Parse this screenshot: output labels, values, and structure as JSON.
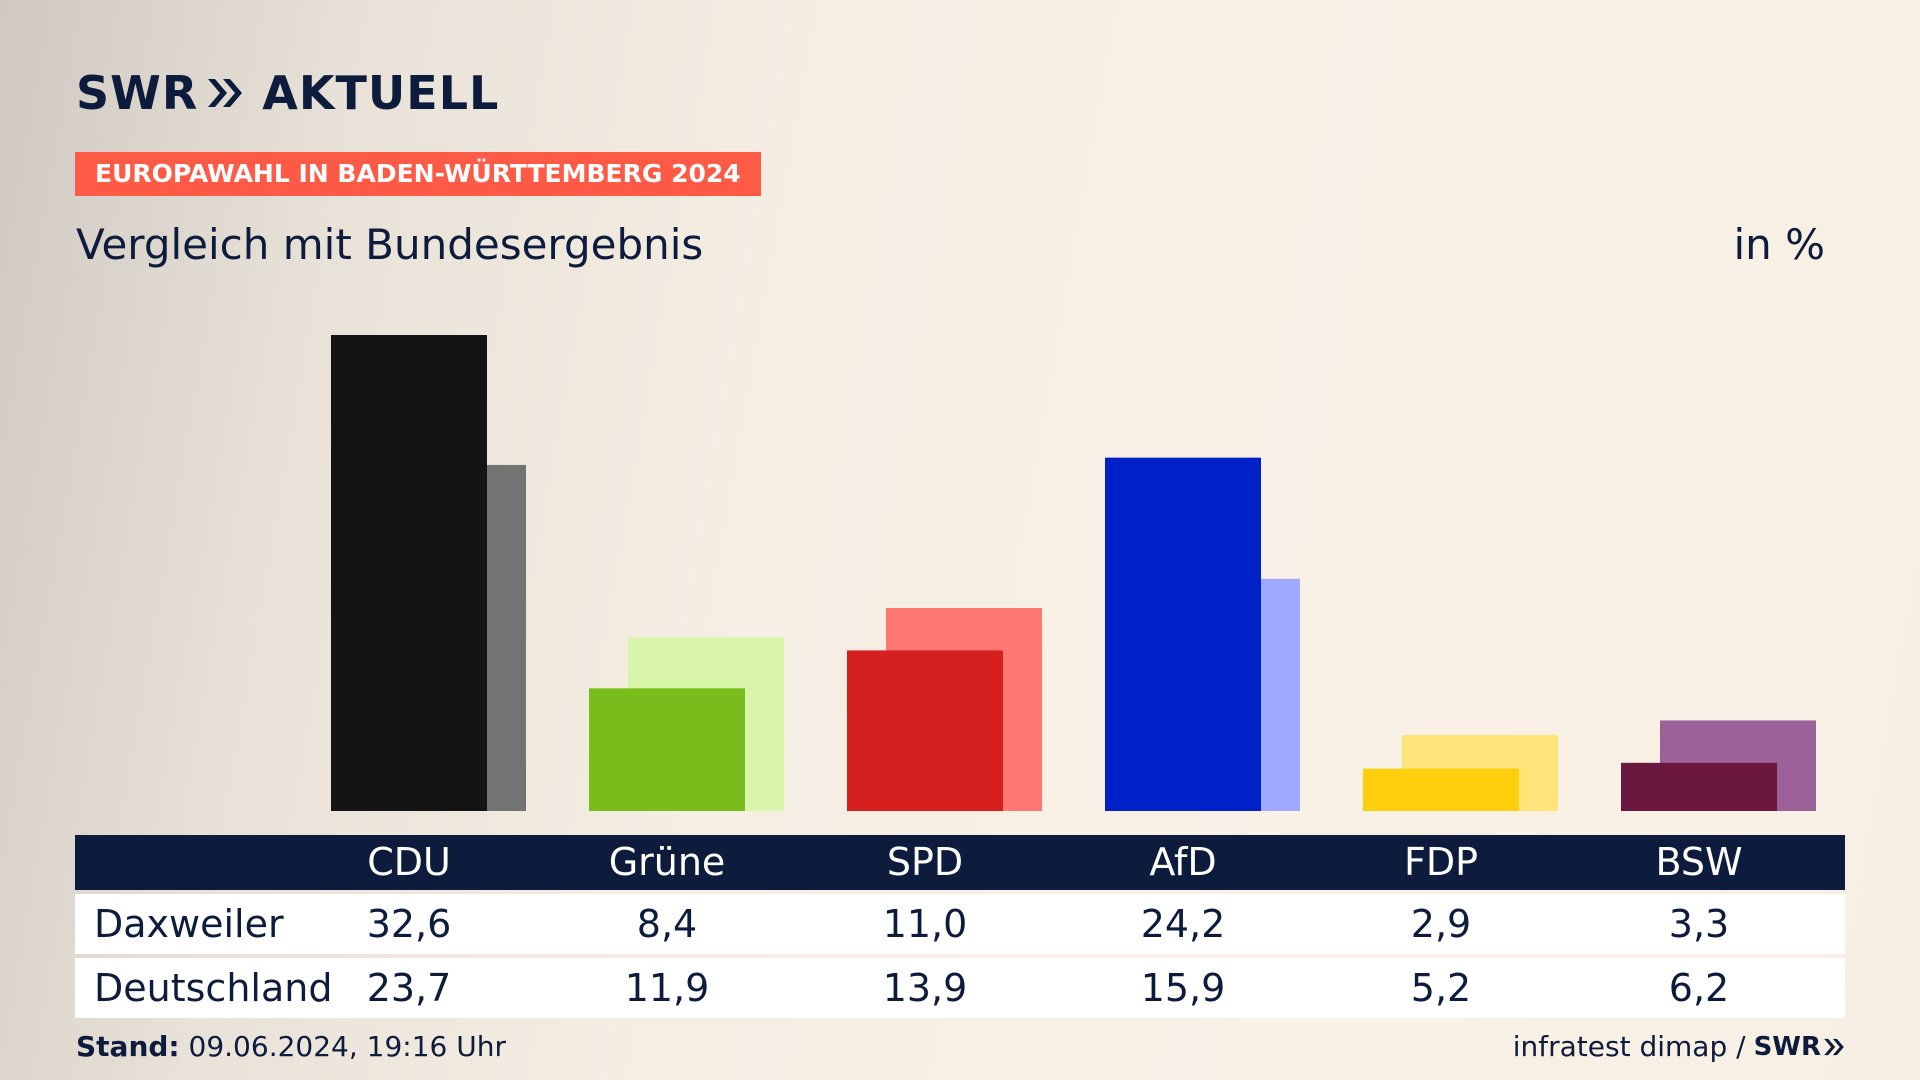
{
  "header": {
    "brand_left": "SWR",
    "brand_right": "AKTUELL",
    "badge": "EUROPAWAHL IN BADEN-WÜRTTEMBERG 2024",
    "subtitle": "Vergleich mit Bundesergebnis",
    "unit": "in %"
  },
  "footer": {
    "stand_label": "Stand:",
    "stand_value": "09.06.2024, 19:16 Uhr",
    "source": "infratest dimap /",
    "logo": "SWR"
  },
  "chart_data": {
    "type": "bar",
    "categories": [
      "CDU",
      "Grüne",
      "SPD",
      "AfD",
      "FDP",
      "BSW"
    ],
    "series": [
      {
        "name": "Daxweiler",
        "values": [
          32.6,
          8.4,
          11.0,
          24.2,
          2.9,
          3.3
        ]
      },
      {
        "name": "Deutschland",
        "values": [
          23.7,
          11.9,
          13.9,
          15.9,
          5.2,
          6.2
        ]
      }
    ],
    "display_values": {
      "Daxweiler": [
        "32,6",
        "8,4",
        "11,0",
        "24,2",
        "2,9",
        "3,3"
      ],
      "Deutschland": [
        "23,7",
        "11,9",
        "13,9",
        "15,9",
        "5,2",
        "6,2"
      ]
    },
    "colors": {
      "primary": [
        "#141414",
        "#79bd1c",
        "#d62020",
        "#0020c8",
        "#ffce0c",
        "#6b1840"
      ],
      "secondary": [
        "#737373",
        "#d8f5aa",
        "#ff7772",
        "#9eaaff",
        "#ffe47a",
        "#9c6198"
      ]
    },
    "ylim": [
      0,
      32.6
    ]
  }
}
